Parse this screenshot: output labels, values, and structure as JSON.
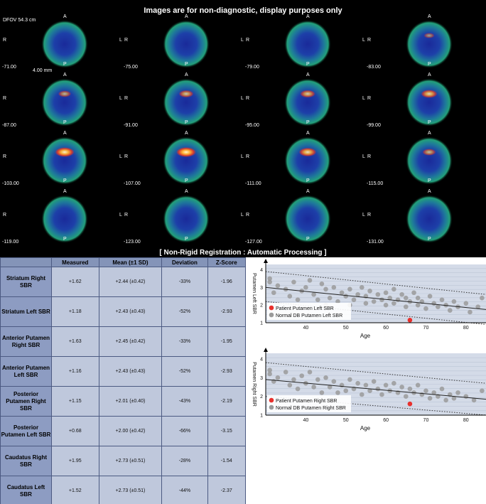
{
  "viewer": {
    "banner": "Images are for non-diagnostic, display purposes only",
    "dfov": "DFOV 54.3 cm",
    "slice_width": "4.00 mm",
    "registration": "[ Non-Rigid Registration : Automatic Processing ]",
    "orientation": {
      "anterior": "A",
      "posterior": "P",
      "right": "R",
      "left": "L"
    },
    "slices": [
      {
        "position": "-71.00",
        "intensity": 0.05
      },
      {
        "position": "-75.00",
        "intensity": 0.1
      },
      {
        "position": "-79.00",
        "intensity": 0.1
      },
      {
        "position": "-83.00",
        "intensity": 0.2
      },
      {
        "position": "-87.00",
        "intensity": 0.4
      },
      {
        "position": "-91.00",
        "intensity": 0.55
      },
      {
        "position": "-95.00",
        "intensity": 0.6
      },
      {
        "position": "-99.00",
        "intensity": 0.7
      },
      {
        "position": "-103.00",
        "intensity": 0.95
      },
      {
        "position": "-107.00",
        "intensity": 1.0
      },
      {
        "position": "-111.00",
        "intensity": 0.8
      },
      {
        "position": "-115.00",
        "intensity": 0.45
      },
      {
        "position": "-119.00",
        "intensity": 0.05
      },
      {
        "position": "-123.00",
        "intensity": 0.05
      },
      {
        "position": "-127.00",
        "intensity": 0.0
      },
      {
        "position": "-131.00",
        "intensity": 0.0
      }
    ]
  },
  "table": {
    "headers": [
      "Measured",
      "Mean (±1 SD)",
      "Deviation",
      "Z-Score"
    ],
    "rows": [
      {
        "region": "Striatum Right SBR",
        "measured": "+1.62",
        "mean": "+2.44 (±0.42)",
        "deviation": "-33%",
        "z": "-1.96"
      },
      {
        "region": "Striatum Left SBR",
        "measured": "+1.18",
        "mean": "+2.43 (±0.43)",
        "deviation": "-52%",
        "z": "-2.93"
      },
      {
        "region": "Anterior Putamen Right SBR",
        "measured": "+1.63",
        "mean": "+2.45 (±0.42)",
        "deviation": "-33%",
        "z": "-1.95"
      },
      {
        "region": "Anterior Putamen Left SBR",
        "measured": "+1.16",
        "mean": "+2.43 (±0.43)",
        "deviation": "-52%",
        "z": "-2.93"
      },
      {
        "region": "Posterior Putamen Right SBR",
        "measured": "+1.15",
        "mean": "+2.01 (±0.40)",
        "deviation": "-43%",
        "z": "-2.19"
      },
      {
        "region": "Posterior Putamen Left SBR",
        "measured": "+0.68",
        "mean": "+2.00 (±0.42)",
        "deviation": "-66%",
        "z": "-3.15"
      },
      {
        "region": "Caudatus Right SBR",
        "measured": "+1.95",
        "mean": "+2.73 (±0.51)",
        "deviation": "-28%",
        "z": "-1.54"
      },
      {
        "region": "Caudatus Left SBR",
        "measured": "+1.52",
        "mean": "+2.73 (±0.51)",
        "deviation": "-44%",
        "z": "-2.37"
      }
    ]
  },
  "colors": {
    "table_header": "#8494b8",
    "table_rowhead": "#8d9cc2",
    "table_cell": "#bfc8dc",
    "chart_bg": "#d4dbe8",
    "patient_point": "#e8302c",
    "normal_point": "#9a9a9a"
  },
  "chart_data": [
    {
      "type": "scatter",
      "xlabel": "Age",
      "ylabel": "Putamen Left SBR",
      "xlim": [
        30,
        85
      ],
      "ylim": [
        1,
        4.3
      ],
      "xticks": [
        40,
        50,
        60,
        70,
        80
      ],
      "yticks": [
        1,
        2,
        3,
        4
      ],
      "grid": true,
      "legend_position": "bottom-left",
      "series": [
        {
          "name": "Patient Putamen Left SBR",
          "points": [
            [
              66,
              1.15
            ]
          ]
        },
        {
          "name": "Normal DB Putamen Left SBR",
          "points": [
            [
              31,
              3.5
            ],
            [
              31,
              3.3
            ],
            [
              32,
              2.7
            ],
            [
              33,
              3.1
            ],
            [
              35,
              2.9
            ],
            [
              36,
              2.5
            ],
            [
              37,
              3.3
            ],
            [
              38,
              2.3
            ],
            [
              39,
              2.8
            ],
            [
              40,
              3.0
            ],
            [
              41,
              3.4
            ],
            [
              42,
              2.6
            ],
            [
              43,
              2.3
            ],
            [
              44,
              3.2
            ],
            [
              45,
              2.0
            ],
            [
              45,
              2.9
            ],
            [
              46,
              2.4
            ],
            [
              47,
              3.0
            ],
            [
              48,
              2.2
            ],
            [
              49,
              2.7
            ],
            [
              50,
              2.5
            ],
            [
              51,
              2.0
            ],
            [
              51,
              2.9
            ],
            [
              52,
              2.3
            ],
            [
              53,
              2.6
            ],
            [
              54,
              3.0
            ],
            [
              55,
              2.1
            ],
            [
              55,
              2.5
            ],
            [
              56,
              2.8
            ],
            [
              57,
              2.2
            ],
            [
              58,
              2.6
            ],
            [
              59,
              2.3
            ],
            [
              60,
              2.0
            ],
            [
              60,
              2.7
            ],
            [
              61,
              2.4
            ],
            [
              62,
              2.1
            ],
            [
              62,
              2.9
            ],
            [
              63,
              2.3
            ],
            [
              64,
              2.6
            ],
            [
              65,
              1.9
            ],
            [
              65,
              2.4
            ],
            [
              66,
              2.2
            ],
            [
              67,
              2.7
            ],
            [
              68,
              2.0
            ],
            [
              68,
              2.4
            ],
            [
              69,
              2.2
            ],
            [
              70,
              1.8
            ],
            [
              71,
              2.5
            ],
            [
              72,
              2.1
            ],
            [
              73,
              1.9
            ],
            [
              74,
              2.3
            ],
            [
              75,
              2.0
            ],
            [
              76,
              1.7
            ],
            [
              77,
              2.2
            ],
            [
              78,
              1.9
            ],
            [
              80,
              2.1
            ],
            [
              81,
              1.6
            ],
            [
              83,
              1.9
            ],
            [
              84,
              2.4
            ]
          ]
        }
      ],
      "regression": {
        "start": [
          30,
          3.0
        ],
        "end": [
          85,
          1.75
        ]
      },
      "band": {
        "upper_start": [
          30,
          3.9
        ],
        "upper_end": [
          85,
          2.6
        ],
        "lower_start": [
          30,
          2.2
        ],
        "lower_end": [
          85,
          0.9
        ]
      }
    },
    {
      "type": "scatter",
      "xlabel": "Age",
      "ylabel": "Putamen Right SBR",
      "xlim": [
        30,
        85
      ],
      "ylim": [
        1,
        4.3
      ],
      "xticks": [
        40,
        50,
        60,
        70,
        80
      ],
      "yticks": [
        1,
        2,
        3,
        4
      ],
      "grid": true,
      "legend_position": "bottom-left",
      "series": [
        {
          "name": "Patient Putamen Right SBR",
          "points": [
            [
              66,
              1.6
            ]
          ]
        },
        {
          "name": "Normal DB Putamen Right SBR",
          "points": [
            [
              31,
              3.4
            ],
            [
              31,
              3.2
            ],
            [
              32,
              2.8
            ],
            [
              33,
              3.0
            ],
            [
              35,
              3.3
            ],
            [
              36,
              2.6
            ],
            [
              37,
              2.9
            ],
            [
              38,
              2.4
            ],
            [
              39,
              3.1
            ],
            [
              40,
              2.7
            ],
            [
              41,
              3.3
            ],
            [
              42,
              2.5
            ],
            [
              43,
              2.9
            ],
            [
              44,
              2.2
            ],
            [
              45,
              3.0
            ],
            [
              46,
              2.5
            ],
            [
              47,
              2.8
            ],
            [
              48,
              2.2
            ],
            [
              49,
              2.6
            ],
            [
              50,
              2.3
            ],
            [
              51,
              2.9
            ],
            [
              52,
              2.4
            ],
            [
              53,
              2.7
            ],
            [
              54,
              2.1
            ],
            [
              55,
              2.6
            ],
            [
              56,
              2.3
            ],
            [
              57,
              2.8
            ],
            [
              58,
              2.4
            ],
            [
              59,
              2.1
            ],
            [
              60,
              2.6
            ],
            [
              61,
              2.3
            ],
            [
              62,
              2.7
            ],
            [
              63,
              2.2
            ],
            [
              64,
              2.5
            ],
            [
              65,
              2.0
            ],
            [
              66,
              2.4
            ],
            [
              67,
              2.2
            ],
            [
              68,
              2.6
            ],
            [
              69,
              2.1
            ],
            [
              70,
              2.3
            ],
            [
              71,
              1.9
            ],
            [
              72,
              2.2
            ],
            [
              73,
              2.0
            ],
            [
              74,
              2.4
            ],
            [
              75,
              1.8
            ],
            [
              76,
              2.1
            ],
            [
              77,
              1.9
            ],
            [
              78,
              2.2
            ],
            [
              80,
              2.0
            ],
            [
              82,
              1.8
            ],
            [
              84,
              2.3
            ]
          ]
        }
      ],
      "regression": {
        "start": [
          30,
          2.9
        ],
        "end": [
          85,
          1.85
        ]
      },
      "band": {
        "upper_start": [
          30,
          3.8
        ],
        "upper_end": [
          85,
          2.7
        ],
        "lower_start": [
          30,
          2.0
        ],
        "lower_end": [
          85,
          1.0
        ]
      }
    }
  ]
}
